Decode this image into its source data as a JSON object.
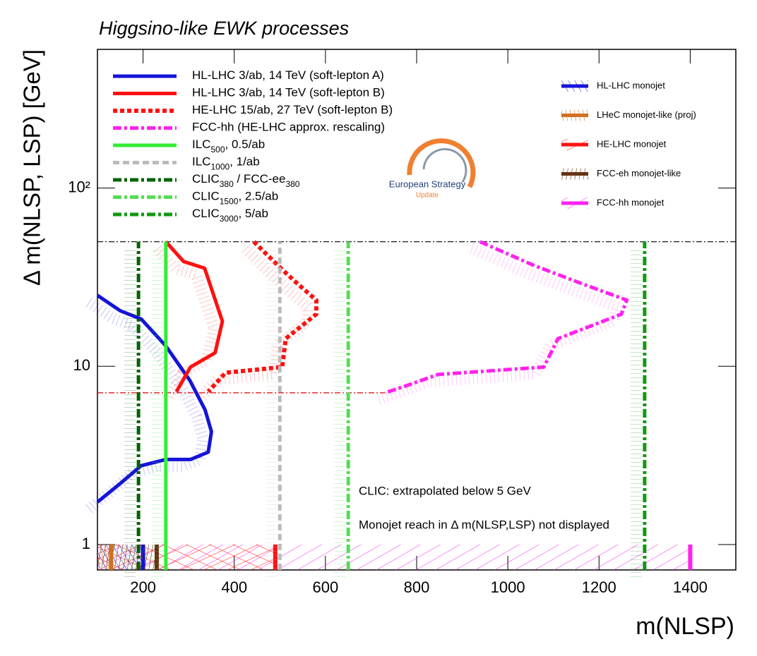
{
  "chart_data": {
    "type": "line",
    "title": "Higgsino-like EWK processes",
    "x_label": "m(NLSP)",
    "y_label": "Δ m(NLSP, LSP) [GeV]",
    "log_y": true,
    "xlim": [
      100,
      1500
    ],
    "ylim": [
      0.72,
      600
    ],
    "xticks": [
      200,
      400,
      600,
      800,
      1000,
      1200,
      1400
    ],
    "yticks": [
      1,
      10,
      {
        "value": 100,
        "label": "10²"
      }
    ],
    "annotations": [
      "CLIC: extrapolated below 5 GeV",
      "Monojet reach in Δ m(NLSP,LSP) not displayed"
    ],
    "logo": [
      "European Strategy",
      "Update"
    ],
    "reference_lines": [
      {
        "y": 50,
        "x": [
          100,
          1500
        ],
        "color": "#000000"
      },
      {
        "y": 7.1,
        "x": [
          100,
          731
        ],
        "color": "#e00000"
      }
    ],
    "series": [
      {
        "name": [
          "HL-LHC 3/ab, 14 TeV (soft-lepton A)"
        ],
        "color": "#1414d8",
        "style": "solid",
        "x": [
          100,
          150,
          196,
          250,
          303,
          336,
          350,
          343,
          304,
          250,
          196,
          150,
          100
        ],
        "y": [
          25,
          20.5,
          18.4,
          13,
          8.3,
          5.7,
          4.3,
          3.3,
          3.0,
          3.0,
          2.77,
          2.2,
          1.73
        ]
      },
      {
        "name": [
          "HL-LHC 3/ab, 14 TeV (soft-lepton B)"
        ],
        "color": "#ff1010",
        "style": "solid",
        "x": [
          250,
          289,
          335,
          374,
          358,
          304,
          273
        ],
        "y": [
          50,
          38.7,
          35.5,
          17.9,
          11.9,
          9.9,
          7.2
        ]
      },
      {
        "name": [
          "HE-LHC 15/ab, 27 TeV (soft-lepton B)"
        ],
        "color": "#ff1010",
        "style": "dotted",
        "x": [
          443,
          502,
          536,
          580,
          580,
          513,
          505,
          381,
          343
        ],
        "y": [
          50,
          35.5,
          29.5,
          23.5,
          19.6,
          14.3,
          9.9,
          9.2,
          7.2
        ]
      },
      {
        "name": [
          "FCC-hh (HE-LHC approx. rescaling)"
        ],
        "color": "#ff22ee",
        "style": "dashdot",
        "x": [
          939,
          1055,
          1156,
          1261,
          1249,
          1110,
          1079,
          847,
          785,
          731
        ],
        "y": [
          50,
          37,
          29.5,
          23.5,
          19.6,
          14.3,
          9.9,
          9.0,
          7.9,
          7.1
        ]
      },
      {
        "name": [
          "ILC",
          "500",
          ", 0.5/ab"
        ],
        "color": "#33ee33",
        "style": "solid",
        "x": [
          250,
          250
        ],
        "y": [
          0.72,
          50
        ]
      },
      {
        "name": [
          "ILC",
          "1000",
          ", 1/ab"
        ],
        "color": "#bbbbbb",
        "style": "dashed",
        "x": [
          500,
          500
        ],
        "y": [
          0.72,
          50
        ]
      },
      {
        "name": [
          "CLIC",
          "380",
          " / FCC-ee",
          "380"
        ],
        "color": "#006400",
        "style": "dashdot",
        "x": [
          190,
          190
        ],
        "y": [
          0.72,
          50
        ]
      },
      {
        "name": [
          "CLIC",
          "1500",
          ", 2.5/ab"
        ],
        "color": "#55dd55",
        "style": "dashdot",
        "x": [
          650,
          650
        ],
        "y": [
          0.72,
          50
        ]
      },
      {
        "name": [
          "CLIC",
          "3000",
          ", 5/ab"
        ],
        "color": "#119911",
        "style": "dashdot",
        "x": [
          1300,
          1300
        ],
        "y": [
          0.72,
          50
        ]
      }
    ],
    "monojet": [
      {
        "name": "HL-LHC monojet",
        "color": "#1414d8",
        "reach": 200,
        "ytop": 1
      },
      {
        "name": "LHeC monojet-like (proj)",
        "color": "#d07020",
        "reach": 130,
        "ytop": 1
      },
      {
        "name": "HE-LHC monojet",
        "color": "#ff1010",
        "reach": 490,
        "ytop": 1
      },
      {
        "name": "FCC-eh monojet-like",
        "color": "#663311",
        "reach": 230,
        "ytop": 1
      },
      {
        "name": "FCC-hh monojet",
        "color": "#ff22ee",
        "reach": 1400,
        "ytop": 1
      }
    ]
  }
}
